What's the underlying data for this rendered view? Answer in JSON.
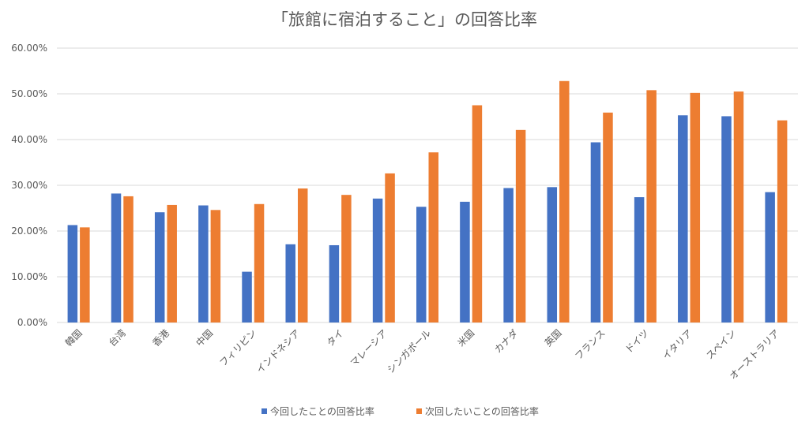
{
  "chart_data": {
    "type": "bar",
    "title": "「旅館に宿泊すること」の回答比率",
    "categories": [
      "韓国",
      "台湾",
      "香港",
      "中国",
      "フィリピン",
      "インドネシア",
      "タイ",
      "マレーシア",
      "シンガポール",
      "米国",
      "カナダ",
      "英国",
      "フランス",
      "ドイツ",
      "イタリア",
      "スペイン",
      "オーストラリア"
    ],
    "series": [
      {
        "name": "今回したことの回答比率",
        "color": "#4472C4",
        "values": [
          21.3,
          28.2,
          24.1,
          25.6,
          11.1,
          17.1,
          16.9,
          27.1,
          25.3,
          26.4,
          29.4,
          29.6,
          39.4,
          27.4,
          45.3,
          45.1,
          28.5
        ]
      },
      {
        "name": "次回したいことの回答比率",
        "color": "#ED7D31",
        "values": [
          20.8,
          27.6,
          25.7,
          24.6,
          25.9,
          29.3,
          27.9,
          32.6,
          37.2,
          47.5,
          42.1,
          52.8,
          45.9,
          50.8,
          50.2,
          50.5,
          44.2
        ]
      }
    ],
    "yticks": [
      "0.00%",
      "10.00%",
      "20.00%",
      "30.00%",
      "40.00%",
      "50.00%",
      "60.00%"
    ],
    "ylim": [
      0,
      60
    ],
    "grid": true,
    "legend_position": "bottom"
  }
}
